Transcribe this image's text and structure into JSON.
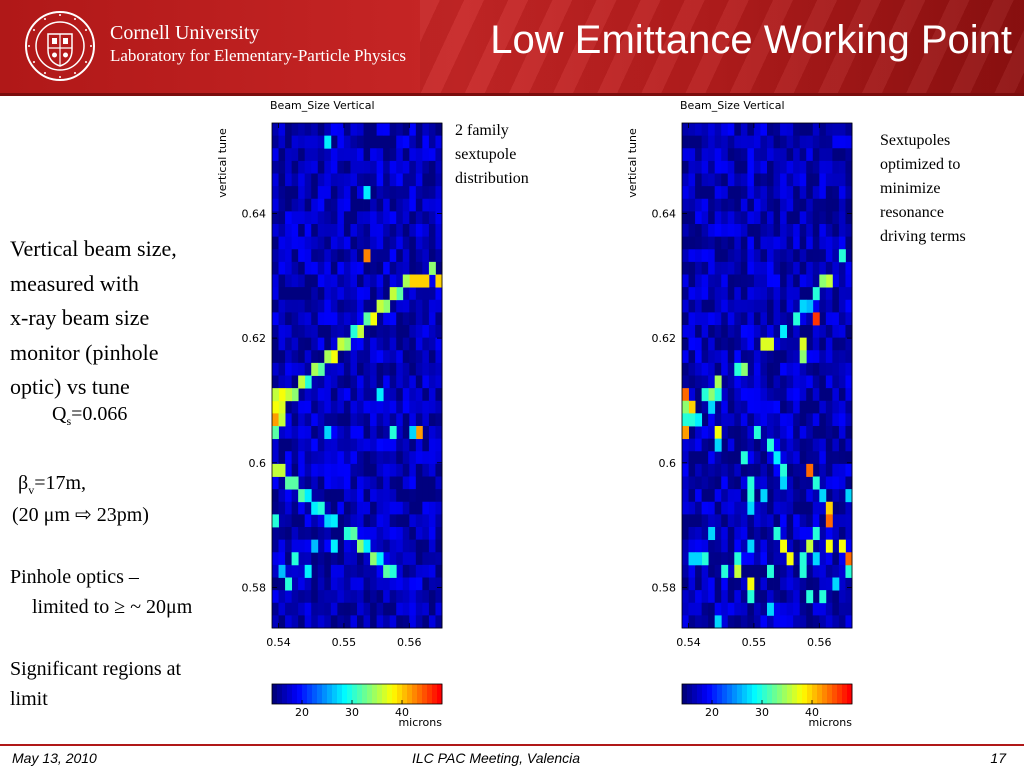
{
  "header": {
    "university": "Cornell University",
    "lab": "Laboratory for Elementary-Particle Physics",
    "title": "Low Emittance Working Point",
    "seal_text": "CORNELL UNIVERSITY FOUNDED A.D. 1865"
  },
  "left_text": {
    "lines": [
      "Vertical beam size,",
      "measured with",
      "x-ray beam size",
      "monitor (pinhole",
      "optic) vs tune"
    ],
    "qs_prefix": "Q",
    "qs_sub": "s",
    "qs_value": "=0.066",
    "beta_symbol": "β",
    "beta_sub": "v",
    "beta_value": "=17m,",
    "emit_open": "(20 μm ",
    "emit_arrow": "⇨",
    "emit_close": " 23pm)",
    "pinhole1": "Pinhole optics –",
    "pinhole2": "limited to ≥ ~ 20μm",
    "sig1": "Significant regions at",
    "sig2": "limit"
  },
  "annotations": {
    "left": [
      "2 family",
      "sextupole",
      "distribution"
    ],
    "right": [
      "Sextupoles",
      "optimized to",
      "minimize",
      "resonance",
      "driving terms"
    ]
  },
  "footer": {
    "date": "May 13, 2010",
    "meeting": "ILC PAC Meeting, Valencia",
    "page": "17"
  },
  "colorscale": {
    "stops": [
      "#00007f",
      "#0000ff",
      "#007fff",
      "#00ffff",
      "#7fff7f",
      "#ffff00",
      "#ff7f00",
      "#ff0000"
    ]
  },
  "chart_data": [
    {
      "type": "heatmap",
      "title": "Beam_Size Vertical",
      "xlabel": "",
      "ylabel": "vertical tune",
      "xlim": [
        0.539,
        0.565
      ],
      "ylim": [
        0.5735,
        0.6545
      ],
      "xticks": [
        0.54,
        0.55,
        0.56
      ],
      "xtick_labels": [
        "0.54",
        "0.55",
        "0.56"
      ],
      "yticks": [
        0.58,
        0.6,
        0.62,
        0.64
      ],
      "ytick_labels": [
        "0.58",
        "0.6",
        "0.62",
        "0.64"
      ],
      "grid": {
        "nx": 26,
        "ny": 40
      },
      "background_microns": 16,
      "colorbar": {
        "min": 14,
        "max": 48,
        "ticks": [
          20,
          30,
          40
        ],
        "tick_labels": [
          "20",
          "30",
          "40"
        ],
        "label": "microns"
      },
      "highlighted_cells": [
        [
          0.5475,
          0.6505,
          28
        ],
        [
          0.5535,
          0.6435,
          28
        ],
        [
          0.5535,
          0.6425,
          28
        ],
        [
          0.5535,
          0.6335,
          43
        ],
        [
          0.5635,
          0.6315,
          34
        ],
        [
          0.5645,
          0.6295,
          40
        ],
        [
          0.5625,
          0.6295,
          40
        ],
        [
          0.5615,
          0.6295,
          40
        ],
        [
          0.5605,
          0.6295,
          40
        ],
        [
          0.5595,
          0.6285,
          35
        ],
        [
          0.5585,
          0.6275,
          32
        ],
        [
          0.5575,
          0.6265,
          36
        ],
        [
          0.5565,
          0.6255,
          34
        ],
        [
          0.5555,
          0.6245,
          36
        ],
        [
          0.5545,
          0.6235,
          38
        ],
        [
          0.5535,
          0.6225,
          32
        ],
        [
          0.5525,
          0.6215,
          36
        ],
        [
          0.5515,
          0.6205,
          30
        ],
        [
          0.5505,
          0.6195,
          34
        ],
        [
          0.5495,
          0.6185,
          36
        ],
        [
          0.5485,
          0.6175,
          38
        ],
        [
          0.5475,
          0.6165,
          35
        ],
        [
          0.5465,
          0.6155,
          32
        ],
        [
          0.5455,
          0.6145,
          35
        ],
        [
          0.5445,
          0.6135,
          30
        ],
        [
          0.5435,
          0.6125,
          36
        ],
        [
          0.5425,
          0.6115,
          34
        ],
        [
          0.5415,
          0.6105,
          36
        ],
        [
          0.5405,
          0.6095,
          37
        ],
        [
          0.5395,
          0.6085,
          38
        ],
        [
          0.5405,
          0.6115,
          38
        ],
        [
          0.5395,
          0.6105,
          36
        ],
        [
          0.5395,
          0.6075,
          42
        ],
        [
          0.5405,
          0.6065,
          36
        ],
        [
          0.5395,
          0.6055,
          32
        ],
        [
          0.5555,
          0.6105,
          28
        ],
        [
          0.5575,
          0.6055,
          30
        ],
        [
          0.5615,
          0.6045,
          42
        ],
        [
          0.5605,
          0.6055,
          27
        ],
        [
          0.5475,
          0.6045,
          27
        ],
        [
          0.5395,
          0.5995,
          36
        ],
        [
          0.5405,
          0.5985,
          36
        ],
        [
          0.5415,
          0.5975,
          32
        ],
        [
          0.5425,
          0.5965,
          32
        ],
        [
          0.5435,
          0.5955,
          32
        ],
        [
          0.5445,
          0.5945,
          28
        ],
        [
          0.5455,
          0.5935,
          28
        ],
        [
          0.5465,
          0.5925,
          30
        ],
        [
          0.5475,
          0.5915,
          27
        ],
        [
          0.5485,
          0.5905,
          28
        ],
        [
          0.5505,
          0.5895,
          30
        ],
        [
          0.5515,
          0.5885,
          32
        ],
        [
          0.5525,
          0.5875,
          34
        ],
        [
          0.5535,
          0.5865,
          28
        ],
        [
          0.5545,
          0.5855,
          34
        ],
        [
          0.5555,
          0.5845,
          28
        ],
        [
          0.5565,
          0.5835,
          32
        ],
        [
          0.5575,
          0.5825,
          30
        ],
        [
          0.5485,
          0.5875,
          28
        ],
        [
          0.5455,
          0.5865,
          26
        ],
        [
          0.5425,
          0.5855,
          30
        ],
        [
          0.5445,
          0.5835,
          28
        ],
        [
          0.5405,
          0.5825,
          26
        ],
        [
          0.5415,
          0.5805,
          30
        ],
        [
          0.5395,
          0.5915,
          30
        ]
      ]
    },
    {
      "type": "heatmap",
      "title": "Beam_Size Vertical",
      "xlabel": "",
      "ylabel": "vertical tune",
      "xlim": [
        0.539,
        0.565
      ],
      "ylim": [
        0.5735,
        0.6545
      ],
      "xticks": [
        0.54,
        0.55,
        0.56
      ],
      "xtick_labels": [
        "0.54",
        "0.55",
        "0.56"
      ],
      "yticks": [
        0.58,
        0.6,
        0.62,
        0.64
      ],
      "ytick_labels": [
        "0.58",
        "0.6",
        "0.62",
        "0.64"
      ],
      "grid": {
        "nx": 26,
        "ny": 40
      },
      "background_microns": 16,
      "colorbar": {
        "min": 14,
        "max": 48,
        "ticks": [
          20,
          30,
          40
        ],
        "tick_labels": [
          "20",
          "30",
          "40"
        ],
        "label": "microns"
      },
      "highlighted_cells": [
        [
          0.5635,
          0.6335,
          30
        ],
        [
          0.5615,
          0.6295,
          36
        ],
        [
          0.5605,
          0.6285,
          34
        ],
        [
          0.5595,
          0.6275,
          30
        ],
        [
          0.5585,
          0.6255,
          26
        ],
        [
          0.5575,
          0.6245,
          27
        ],
        [
          0.5595,
          0.6225,
          46
        ],
        [
          0.5565,
          0.6225,
          30
        ],
        [
          0.5545,
          0.6205,
          28
        ],
        [
          0.5525,
          0.6185,
          37
        ],
        [
          0.5515,
          0.6185,
          37
        ],
        [
          0.5575,
          0.6185,
          37
        ],
        [
          0.5575,
          0.6165,
          34
        ],
        [
          0.5485,
          0.6145,
          34
        ],
        [
          0.5475,
          0.6145,
          30
        ],
        [
          0.5445,
          0.6125,
          35
        ],
        [
          0.5435,
          0.6115,
          34
        ],
        [
          0.5445,
          0.6105,
          30
        ],
        [
          0.5435,
          0.6095,
          27
        ],
        [
          0.5425,
          0.6105,
          30
        ],
        [
          0.5395,
          0.6105,
          44
        ],
        [
          0.5405,
          0.6095,
          40
        ],
        [
          0.5395,
          0.6085,
          34
        ],
        [
          0.5405,
          0.6075,
          30
        ],
        [
          0.5395,
          0.6065,
          30
        ],
        [
          0.5395,
          0.6055,
          38
        ],
        [
          0.5395,
          0.6045,
          42
        ],
        [
          0.5415,
          0.6075,
          30
        ],
        [
          0.5415,
          0.6065,
          28
        ],
        [
          0.5445,
          0.6055,
          38
        ],
        [
          0.5505,
          0.6045,
          30
        ],
        [
          0.5525,
          0.6025,
          30
        ],
        [
          0.5535,
          0.6015,
          28
        ],
        [
          0.5445,
          0.6025,
          27
        ],
        [
          0.5485,
          0.6005,
          30
        ],
        [
          0.5495,
          0.5975,
          30
        ],
        [
          0.5545,
          0.5985,
          30
        ],
        [
          0.5585,
          0.5985,
          44
        ],
        [
          0.5595,
          0.5975,
          30
        ],
        [
          0.5545,
          0.5965,
          27
        ],
        [
          0.5495,
          0.5955,
          30
        ],
        [
          0.5515,
          0.5945,
          27
        ],
        [
          0.5495,
          0.5935,
          27
        ],
        [
          0.5605,
          0.5955,
          27
        ],
        [
          0.5645,
          0.5945,
          27
        ],
        [
          0.5615,
          0.5925,
          40
        ],
        [
          0.5615,
          0.5915,
          44
        ],
        [
          0.5595,
          0.5895,
          30
        ],
        [
          0.5535,
          0.5885,
          30
        ],
        [
          0.5475,
          0.5855,
          30
        ],
        [
          0.5545,
          0.5865,
          38
        ],
        [
          0.5555,
          0.5845,
          38
        ],
        [
          0.5525,
          0.5835,
          30
        ],
        [
          0.5495,
          0.5805,
          38
        ],
        [
          0.5495,
          0.5795,
          30
        ],
        [
          0.5425,
          0.5855,
          30
        ],
        [
          0.5455,
          0.5825,
          30
        ],
        [
          0.5475,
          0.5825,
          36
        ],
        [
          0.5495,
          0.5875,
          27
        ],
        [
          0.5575,
          0.5825,
          30
        ],
        [
          0.5405,
          0.5855,
          27
        ],
        [
          0.5445,
          0.5755,
          27
        ],
        [
          0.5585,
          0.5795,
          30
        ],
        [
          0.5605,
          0.5795,
          30
        ],
        [
          0.5645,
          0.5825,
          30
        ],
        [
          0.5645,
          0.5855,
          44
        ],
        [
          0.5635,
          0.5865,
          38
        ],
        [
          0.5615,
          0.5875,
          38
        ],
        [
          0.5585,
          0.5865,
          36
        ],
        [
          0.5575,
          0.5855,
          30
        ],
        [
          0.5595,
          0.5845,
          27
        ],
        [
          0.5435,
          0.5895,
          27
        ],
        [
          0.5525,
          0.5775,
          27
        ],
        [
          0.5415,
          0.5855,
          27
        ],
        [
          0.5625,
          0.5805,
          27
        ]
      ]
    }
  ]
}
